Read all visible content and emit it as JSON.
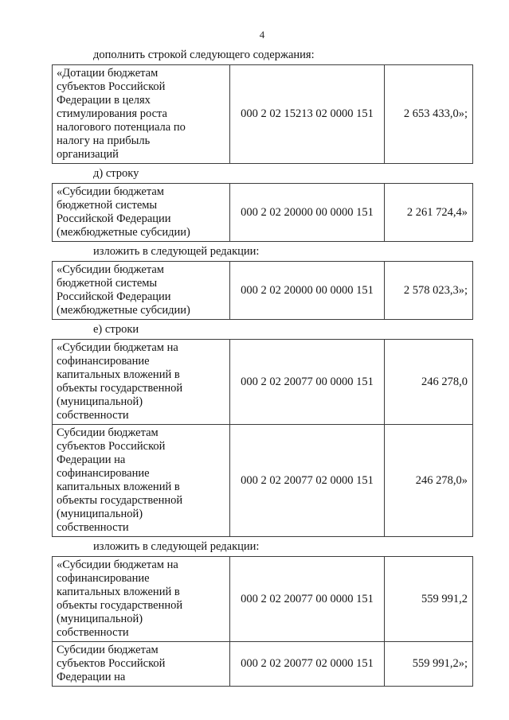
{
  "page": {
    "number": "4"
  },
  "paragraphs": {
    "add_row": "дополнить строкой следующего содержания:",
    "item_d": "д) строку",
    "restate_1": "изложить в следующей редакции:",
    "item_e": "е) строки",
    "restate_2": "изложить в следующей редакции:"
  },
  "tables": [
    {
      "rows": [
        {
          "name": "«Дотации бюджетам\nсубъектов Российской\nФедерации в целях\nстимулирования роста\nналогового потенциала по\nналогу на прибыль\nорганизаций",
          "code": "000 2 02 15213 02 0000 151",
          "amount": "2 653 433,0»;"
        }
      ]
    },
    {
      "rows": [
        {
          "name": "«Субсидии бюджетам\nбюджетной системы\nРоссийской Федерации\n(межбюджетные субсидии)",
          "code": "000 2 02 20000 00 0000 151",
          "amount": "2 261 724,4»"
        }
      ]
    },
    {
      "rows": [
        {
          "name": "«Субсидии бюджетам\nбюджетной системы\nРоссийской Федерации\n(межбюджетные субсидии)",
          "code": "000 2 02 20000 00 0000 151",
          "amount": "2 578 023,3»;"
        }
      ]
    },
    {
      "rows": [
        {
          "name": "«Субсидии бюджетам на\nсофинансирование\nкапитальных вложений в\nобъекты государственной\n(муниципальной)\nсобственности",
          "code": "000 2 02 20077 00 0000 151",
          "amount": "246 278,0"
        },
        {
          "name": "Субсидии бюджетам\nсубъектов Российской\nФедерации на\nсофинансирование\nкапитальных вложений в\nобъекты государственной\n(муниципальной)\nсобственности",
          "code": "000 2 02 20077 02 0000 151",
          "amount": "246 278,0»"
        }
      ]
    },
    {
      "rows": [
        {
          "name": "«Субсидии бюджетам на\nсофинансирование\nкапитальных вложений в\nобъекты государственной\n(муниципальной)\nсобственности",
          "code": "000 2 02 20077 00 0000 151",
          "amount": "559 991,2"
        },
        {
          "name": "Субсидии бюджетам\nсубъектов Российской\nФедерации на",
          "code": "000 2 02 20077 02 0000 151",
          "amount": "559 991,2»;"
        }
      ]
    }
  ]
}
